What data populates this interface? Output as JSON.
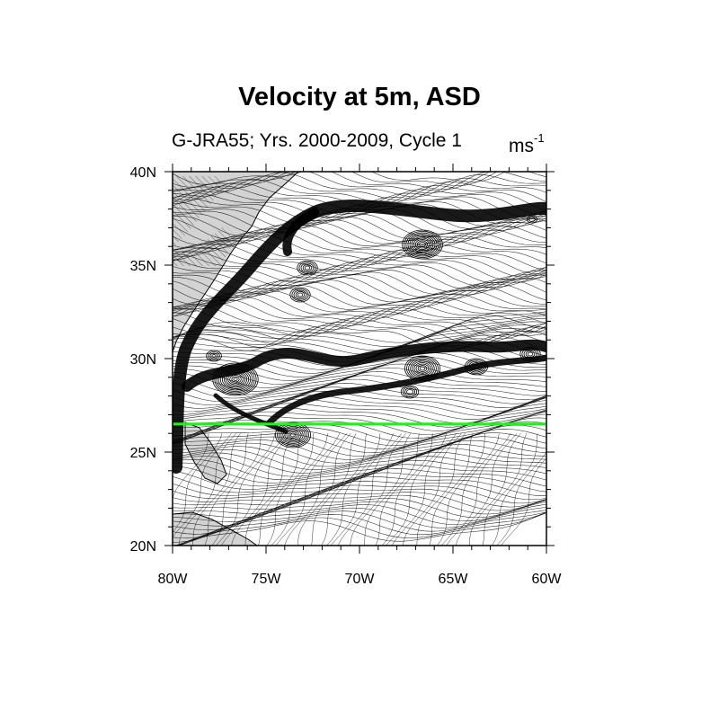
{
  "title": "Velocity at 5m, ASD",
  "subtitle": "G-JRA55; Yrs. 2000-2009, Cycle 1",
  "units": {
    "base": "ms",
    "exponent": "-1"
  },
  "map": {
    "lon_range": [
      -80,
      -60
    ],
    "lat_range": [
      20,
      40
    ],
    "marker_line": {
      "lat": 26.5,
      "color": "#22ee22"
    },
    "land_color": "#d3d3d3",
    "flow_color": "#000000"
  },
  "x_ticks": [
    {
      "lon": -80,
      "label": "80W"
    },
    {
      "lon": -75,
      "label": "75W"
    },
    {
      "lon": -70,
      "label": "70W"
    },
    {
      "lon": -65,
      "label": "65W"
    },
    {
      "lon": -60,
      "label": "60W"
    }
  ],
  "y_ticks": [
    {
      "lat": 40,
      "label": "40N"
    },
    {
      "lat": 35,
      "label": "35N"
    },
    {
      "lat": 30,
      "label": "30N"
    },
    {
      "lat": 25,
      "label": "25N"
    },
    {
      "lat": 20,
      "label": "20N"
    }
  ]
}
